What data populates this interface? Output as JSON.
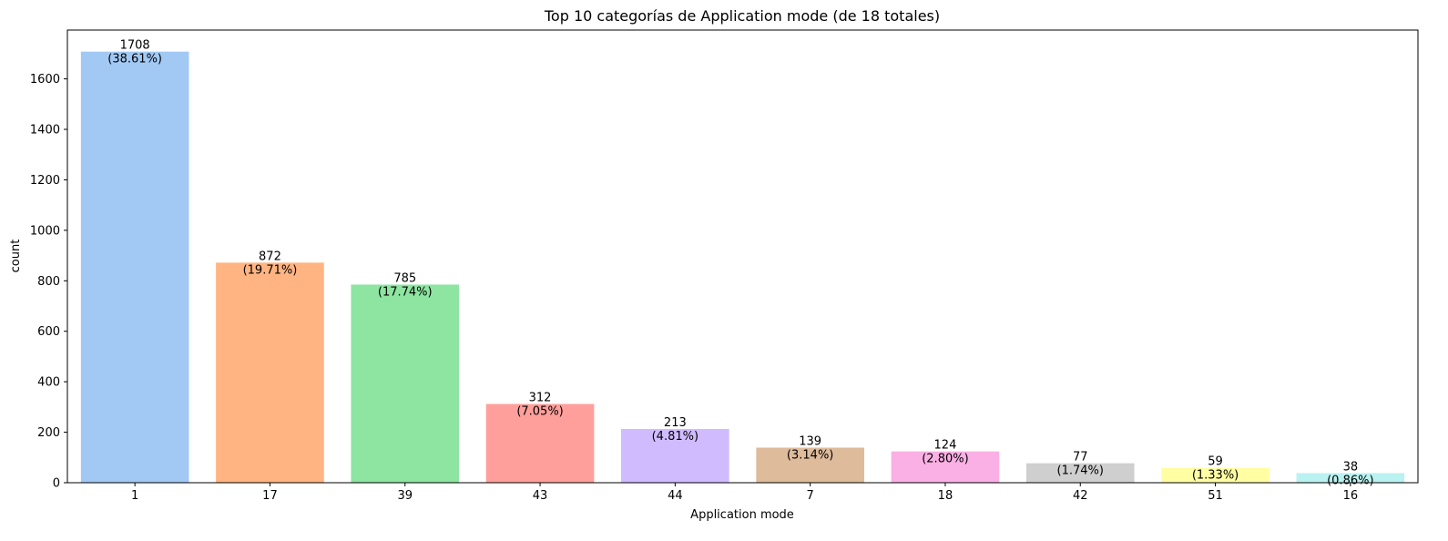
{
  "chart_data": {
    "type": "bar",
    "title": "Top 10 categorías de Application mode (de 18 totales)",
    "xlabel": "Application mode",
    "ylabel": "count",
    "categories": [
      "1",
      "17",
      "39",
      "43",
      "44",
      "7",
      "18",
      "42",
      "51",
      "16"
    ],
    "values": [
      1708,
      872,
      785,
      312,
      213,
      139,
      124,
      77,
      59,
      38
    ],
    "percent_labels": [
      "(38.61%)",
      "(19.71%)",
      "(17.74%)",
      "(7.05%)",
      "(4.81%)",
      "(3.14%)",
      "(2.80%)",
      "(1.74%)",
      "(1.33%)",
      "(0.86%)"
    ],
    "colors": [
      "#a1c9f4",
      "#ffb482",
      "#8de5a1",
      "#ff9f9b",
      "#d0bbff",
      "#debb9b",
      "#fab0e4",
      "#cfcfcf",
      "#fffea3",
      "#b9f2f0"
    ],
    "ylim": [
      0,
      1793.4
    ],
    "yticks": [
      0,
      200,
      400,
      600,
      800,
      1000,
      1200,
      1400,
      1600
    ],
    "grid": false,
    "legend": "none"
  }
}
